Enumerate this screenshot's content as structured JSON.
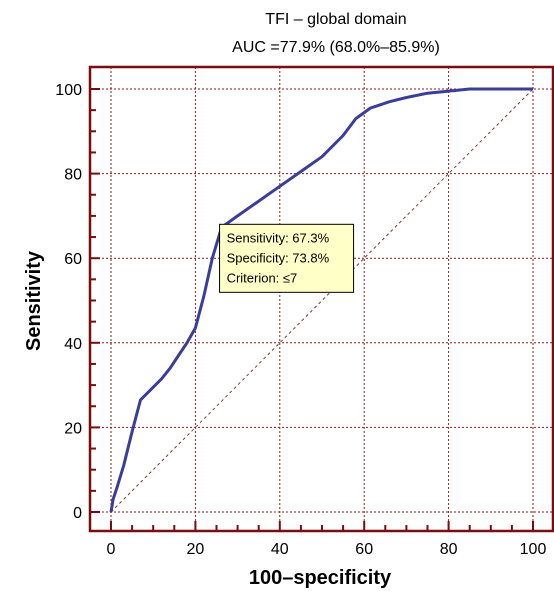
{
  "chart_data": {
    "type": "line",
    "title": "TFI – global domain",
    "subtitle": "AUC =77.9% (68.0%–85.9%)",
    "xlabel": "100–specificity",
    "ylabel": "Sensitivity",
    "xlim": [
      0,
      100
    ],
    "ylim": [
      0,
      100
    ],
    "xticks": [
      "0",
      "20",
      "40",
      "60",
      "80",
      "100"
    ],
    "yticks": [
      "0",
      "20",
      "40",
      "60",
      "80",
      "100"
    ],
    "grid": true,
    "series": [
      {
        "x": [
          0,
          0.5,
          1.5,
          3,
          5,
          7,
          9,
          12,
          14,
          16,
          18,
          20,
          22,
          24,
          26.2,
          30,
          35,
          40,
          45,
          50,
          55,
          58,
          61.5,
          63,
          66,
          70,
          75,
          80,
          85,
          90,
          95,
          100
        ],
        "y": [
          0,
          3,
          6,
          11,
          19,
          26.5,
          28.5,
          31.5,
          34,
          37,
          40,
          43.5,
          51,
          60,
          67.3,
          70,
          73.5,
          77,
          80.5,
          84,
          89,
          93,
          95.5,
          96,
          97,
          98,
          99,
          99.5,
          100,
          100,
          100,
          100
        ],
        "color": "#3b3d9a"
      },
      {
        "x": [
          0,
          100
        ],
        "y": [
          0,
          100
        ],
        "style": "dashed-diagonal",
        "color": "#7a3a3a"
      }
    ],
    "annotation": {
      "lines": [
        "Sensitivity: 67.3%",
        "Specificity: 73.8%",
        "Criterion: ≤7"
      ],
      "anchor_x": 26.2,
      "anchor_y": 67.3
    },
    "colors": {
      "frame": "#7a0d0d",
      "grid": "#8b1a1a",
      "curve": "#3b3d9a",
      "tooltip_bg": "#ffffc8"
    }
  }
}
